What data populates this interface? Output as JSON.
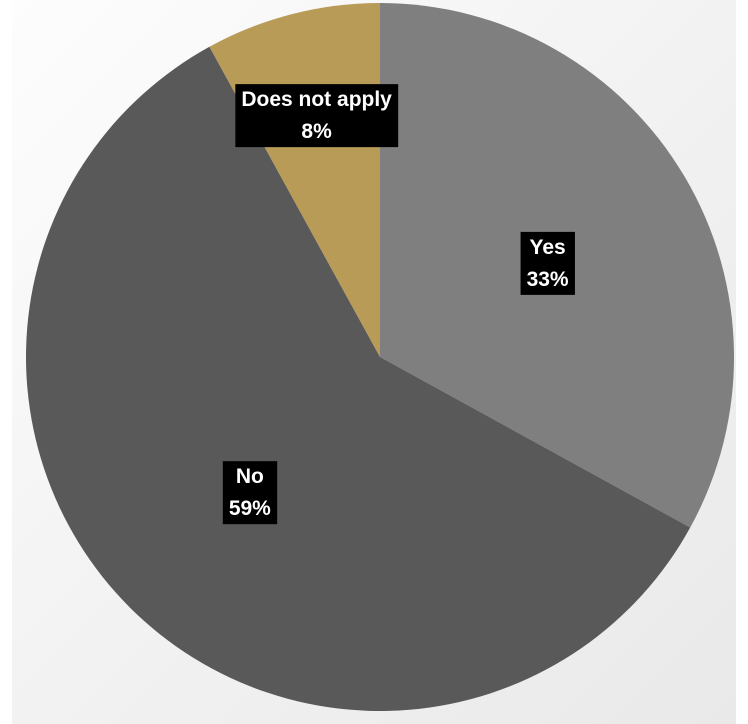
{
  "chart_data": {
    "type": "pie",
    "title": "",
    "slices": [
      {
        "name": "Yes",
        "value": 33,
        "label": "33%",
        "color": "#7f7f7f"
      },
      {
        "name": "No",
        "value": 59,
        "label": "59%",
        "color": "#595959"
      },
      {
        "name": "Does not apply",
        "value": 8,
        "label": "8%",
        "color": "#b89b57"
      }
    ],
    "start_angle_deg": 0,
    "direction": "clockwise",
    "legend": "none",
    "data_labels": "inside, name and percent on black box"
  }
}
